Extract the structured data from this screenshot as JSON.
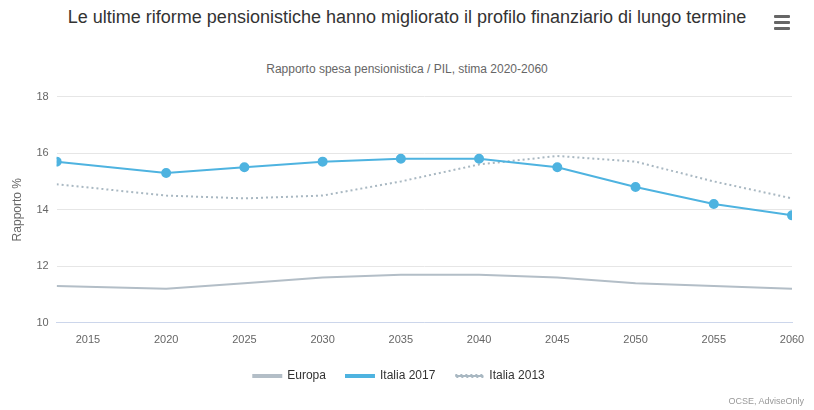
{
  "chart_data": {
    "type": "line",
    "title": "Le ultime riforme pensionistiche hanno migliorato il profilo finanziario di lungo termine",
    "subtitle": "Rapporto spesa pensionistica / PIL, stima 2020-2060",
    "ylabel": "Rapporto %",
    "source": "OCSE, AdviseOnly",
    "x": [
      2013,
      2020,
      2025,
      2030,
      2035,
      2040,
      2045,
      2050,
      2055,
      2060
    ],
    "series": [
      {
        "name": "Europa",
        "color": "#b3bec7",
        "marker": "none",
        "line_style": "solid",
        "values": [
          11.3,
          11.2,
          11.4,
          11.6,
          11.7,
          11.7,
          11.6,
          11.4,
          11.3,
          11.2
        ]
      },
      {
        "name": "Italia 2017",
        "color": "#4eb3e0",
        "marker": "circle",
        "line_style": "solid",
        "values": [
          15.7,
          15.3,
          15.5,
          15.7,
          15.8,
          15.8,
          15.5,
          14.8,
          14.2,
          13.8
        ]
      },
      {
        "name": "Italia 2013",
        "color": "#a9b8c2",
        "marker": "none",
        "line_style": "dotted",
        "values": [
          14.9,
          14.5,
          14.4,
          14.5,
          15.0,
          15.6,
          15.9,
          15.7,
          15.0,
          14.4
        ]
      }
    ],
    "xlim": [
      2013,
      2060
    ],
    "xticks": [
      2015,
      2020,
      2025,
      2030,
      2035,
      2040,
      2045,
      2050,
      2055,
      2060
    ],
    "ylim": [
      10,
      18
    ],
    "yticks": [
      10,
      12,
      14,
      16,
      18
    ],
    "grid": "y",
    "legend": "bottom"
  }
}
